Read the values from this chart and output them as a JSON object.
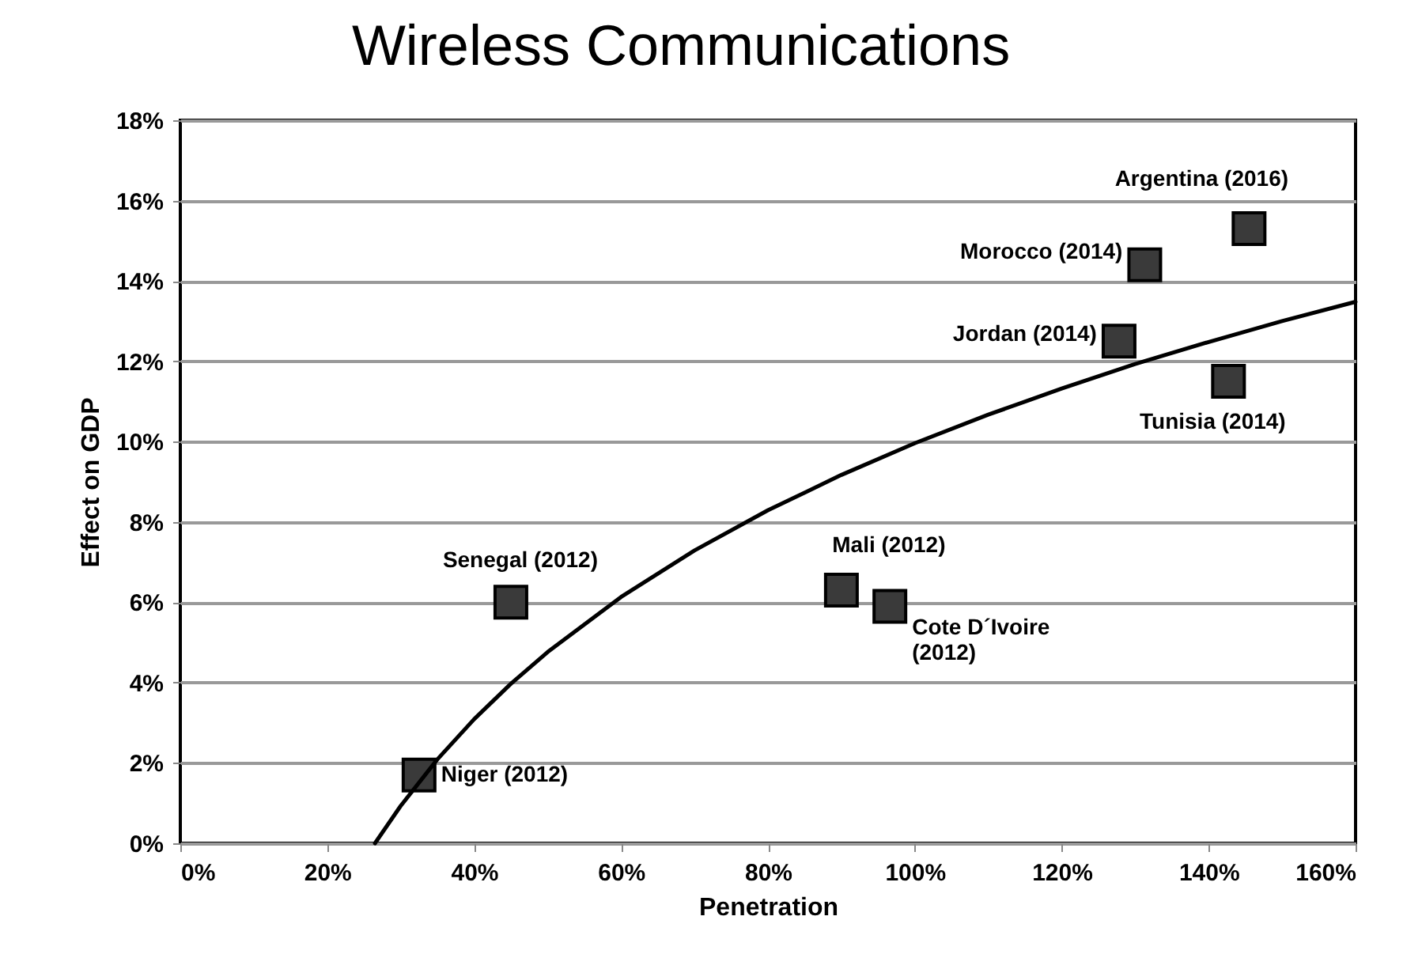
{
  "chart_data": {
    "type": "scatter",
    "title": "Wireless Communications",
    "xlabel": "Penetration",
    "ylabel": "Effect on GDP",
    "grid": "y",
    "xlim": [
      0,
      160
    ],
    "ylim": [
      0,
      18
    ],
    "xticks": [
      {
        "value": 0,
        "label": "0%"
      },
      {
        "value": 20,
        "label": "20%"
      },
      {
        "value": 40,
        "label": "40%"
      },
      {
        "value": 60,
        "label": "60%"
      },
      {
        "value": 80,
        "label": "80%"
      },
      {
        "value": 100,
        "label": "100%"
      },
      {
        "value": 120,
        "label": "120%"
      },
      {
        "value": 140,
        "label": "140%"
      },
      {
        "value": 160,
        "label": "160%"
      }
    ],
    "yticks": [
      {
        "value": 0,
        "label": "0%"
      },
      {
        "value": 2,
        "label": "2%"
      },
      {
        "value": 4,
        "label": "4%"
      },
      {
        "value": 6,
        "label": "6%"
      },
      {
        "value": 8,
        "label": "8%"
      },
      {
        "value": 10,
        "label": "10%"
      },
      {
        "value": 12,
        "label": "12%"
      },
      {
        "value": 14,
        "label": "14%"
      },
      {
        "value": 16,
        "label": "16%"
      },
      {
        "value": 18,
        "label": "18%"
      }
    ],
    "series": [
      {
        "marker": "square",
        "color": "#3a3a3a",
        "x": [
          32.5,
          45,
          90,
          96.6,
          127.8,
          131.3,
          142.7,
          145.5
        ],
        "values": [
          1.7,
          6.0,
          6.3,
          5.9,
          12.5,
          14.4,
          11.5,
          15.3
        ]
      },
      {
        "type": "line",
        "color": "#000000",
        "x": [
          26.5,
          30,
          35,
          40,
          45,
          50,
          60,
          70,
          80,
          90,
          100,
          110,
          120,
          130,
          140,
          150,
          160
        ],
        "values": [
          0,
          0.93,
          2.09,
          3.09,
          3.97,
          4.76,
          6.13,
          7.29,
          8.29,
          9.17,
          9.96,
          10.67,
          11.32,
          11.93,
          12.48,
          13.0,
          13.48
        ]
      }
    ],
    "annotations": [
      {
        "text": "Niger (2012)",
        "x": 32.5,
        "y": 1.7
      },
      {
        "text": "Senegal (2012)",
        "x": 45,
        "y": 6.0
      },
      {
        "text": "Mali (2012)",
        "x": 90,
        "y": 6.3
      },
      {
        "text": "Cote D´Ivoire\n(2012)",
        "x": 96.6,
        "y": 5.9
      },
      {
        "text": "Jordan (2014)",
        "x": 127.8,
        "y": 12.5
      },
      {
        "text": "Morocco (2014)",
        "x": 131.3,
        "y": 14.4
      },
      {
        "text": "Tunisia (2014)",
        "x": 142.7,
        "y": 11.5
      },
      {
        "text": "Argentina (2016)",
        "x": 145.5,
        "y": 15.3
      }
    ]
  }
}
